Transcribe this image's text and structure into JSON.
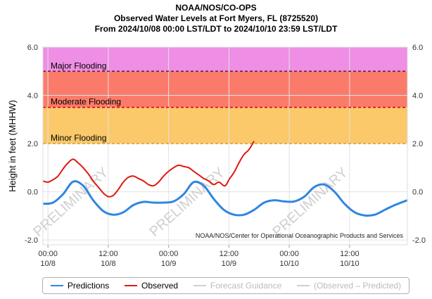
{
  "titles": {
    "line1": "NOAA/NOS/CO-OPS",
    "line2": "Observed Water Levels at Fort Myers, FL (8725520)",
    "line3": "From 2024/10/08 00:00 LST/LDT to 2024/10/10 23:59 LST/LDT"
  },
  "chart_data": {
    "type": "line",
    "ylabel": "Height in feet (MHHW)",
    "ylim": [
      -2.2,
      6.0
    ],
    "yticks": [
      "-2.0",
      "0.0",
      "2.0",
      "4.0",
      "6.0"
    ],
    "xlim_hours": [
      -1,
      71.5
    ],
    "xticks": [
      {
        "hour": 0,
        "time": "00:00",
        "date": "10/8"
      },
      {
        "hour": 12,
        "time": "12:00",
        "date": "10/8"
      },
      {
        "hour": 24,
        "time": "00:00",
        "date": "10/9"
      },
      {
        "hour": 36,
        "time": "12:00",
        "date": "10/9"
      },
      {
        "hour": 48,
        "time": "00:00",
        "date": "10/10"
      },
      {
        "hour": 60,
        "time": "12:00",
        "date": "10/10"
      }
    ],
    "flood_zones": [
      {
        "name": "Major Flooding",
        "from": 5.0,
        "to": 6.0,
        "color": "#ee8ee4",
        "line": "#5a1a50"
      },
      {
        "name": "Moderate Flooding",
        "from": 3.5,
        "to": 5.0,
        "color": "#fb7b6a",
        "line": "#d40000"
      },
      {
        "name": "Minor Flooding",
        "from": 2.0,
        "to": 3.5,
        "color": "#fbc86a",
        "line": "#e0a020"
      }
    ],
    "series": [
      {
        "name": "Predictions",
        "color": "#2f86e0",
        "x": [
          -1,
          1,
          3,
          5,
          7,
          9,
          11,
          13,
          15,
          17,
          19,
          21,
          23,
          25,
          27,
          29,
          31,
          33,
          35,
          37,
          39,
          41,
          43,
          45,
          47,
          49,
          51,
          53,
          55,
          57,
          59,
          61,
          63,
          65,
          67,
          69,
          71.5
        ],
        "values": [
          -0.5,
          -0.45,
          -0.1,
          0.42,
          0.25,
          -0.35,
          -0.8,
          -0.95,
          -0.85,
          -0.55,
          -0.42,
          -0.45,
          -0.45,
          -0.4,
          -0.1,
          0.4,
          0.25,
          -0.3,
          -0.75,
          -0.95,
          -0.95,
          -0.75,
          -0.45,
          -0.35,
          -0.4,
          -0.4,
          -0.2,
          0.2,
          0.3,
          0.0,
          -0.5,
          -0.85,
          -0.98,
          -0.95,
          -0.75,
          -0.55,
          -0.35
        ]
      },
      {
        "name": "Observed",
        "color": "#dd1a10",
        "x": [
          -1,
          0,
          1,
          2,
          3,
          4,
          5,
          6,
          7,
          8,
          9,
          10,
          11,
          12,
          13,
          14,
          15,
          16,
          17,
          18,
          19,
          20,
          21,
          22,
          23,
          24,
          25,
          26,
          27,
          28,
          29,
          30,
          31,
          32,
          33,
          34,
          35,
          35.5,
          36,
          37,
          38,
          39,
          40,
          41
        ],
        "values": [
          0.45,
          0.4,
          0.5,
          0.65,
          0.95,
          1.2,
          1.35,
          1.2,
          1.0,
          0.75,
          0.45,
          0.2,
          -0.05,
          -0.2,
          -0.15,
          0.1,
          0.4,
          0.6,
          0.65,
          0.55,
          0.45,
          0.3,
          0.25,
          0.4,
          0.65,
          0.85,
          1.0,
          1.1,
          1.05,
          1.0,
          0.85,
          0.7,
          0.55,
          0.45,
          0.3,
          0.4,
          0.25,
          0.3,
          0.5,
          0.8,
          1.2,
          1.55,
          1.75,
          2.1
        ]
      },
      {
        "name": "Forecast Guidance",
        "color": "#c8c8c8",
        "values": []
      },
      {
        "name": "(Observed – Predicted)",
        "color": "#c8c8c8",
        "values": []
      }
    ],
    "watermark": "PRELIMINARY",
    "credit": "NOAA/NOS/Center for Operational Oceanographic Products and Services"
  }
}
